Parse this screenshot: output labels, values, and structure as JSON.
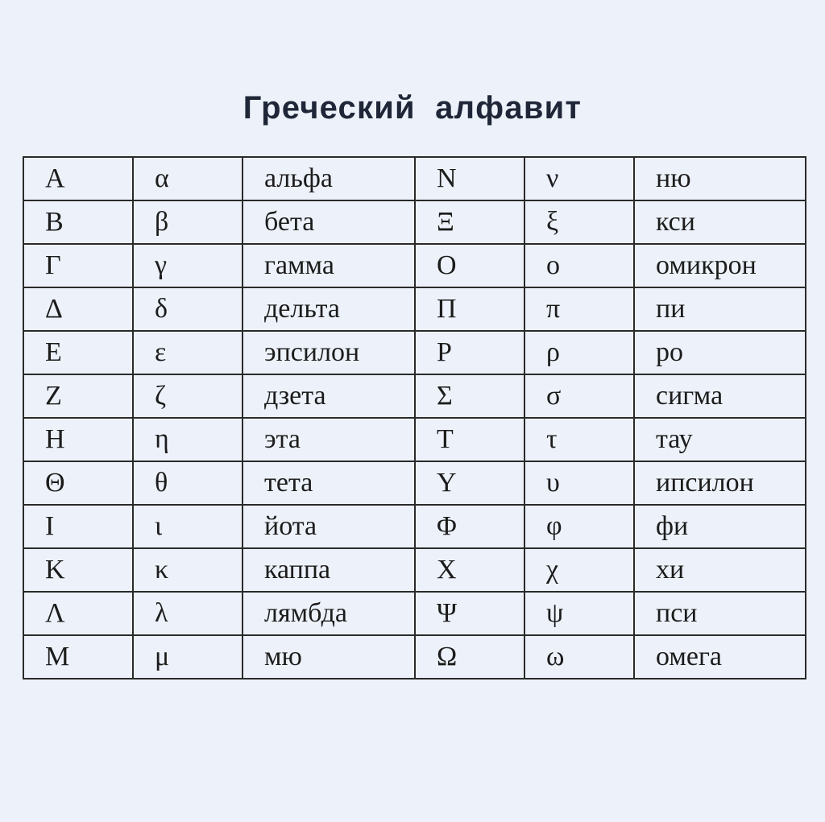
{
  "header": {
    "title": "Греческий алфавит"
  },
  "table": {
    "rows": [
      [
        "Α",
        "α",
        "альфа",
        "Ν",
        "ν",
        "ню"
      ],
      [
        "Β",
        "β",
        "бета",
        "Ξ",
        "ξ",
        "кси"
      ],
      [
        "Γ",
        "γ",
        "гамма",
        "Ο",
        "ο",
        "омикрон"
      ],
      [
        "Δ",
        "δ",
        "дельта",
        "Π",
        "π",
        "пи"
      ],
      [
        "Ε",
        "ε",
        "эпсилон",
        "Ρ",
        "ρ",
        "ро"
      ],
      [
        "Ζ",
        "ζ",
        "дзета",
        "Σ",
        "σ",
        "сигма"
      ],
      [
        "Η",
        "η",
        "эта",
        "Τ",
        "τ",
        "тау"
      ],
      [
        "Θ",
        "θ",
        "тета",
        "Υ",
        "υ",
        "ипсилон"
      ],
      [
        "Ι",
        "ι",
        "йота",
        "Φ",
        "φ",
        "фи"
      ],
      [
        "Κ",
        "κ",
        "каппа",
        "Χ",
        "χ",
        "хи"
      ],
      [
        "Λ",
        "λ",
        "лямбда",
        "Ψ",
        "ψ",
        "пси"
      ],
      [
        "Μ",
        "μ",
        "мю",
        "Ω",
        "ω",
        "омега"
      ]
    ]
  }
}
